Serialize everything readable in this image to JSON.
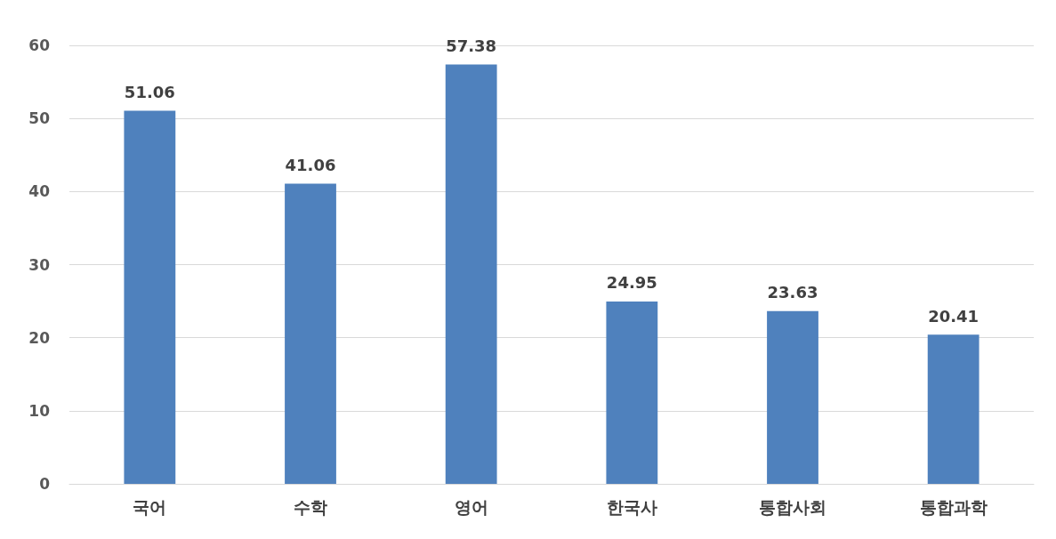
{
  "chart_data": {
    "type": "bar",
    "categories": [
      "국어",
      "수학",
      "영어",
      "한국사",
      "통합사회",
      "통합과학"
    ],
    "values": [
      51.06,
      41.06,
      57.38,
      24.95,
      23.63,
      20.41
    ],
    "color": "#4f81bd",
    "ylim": [
      0,
      60
    ],
    "yticks": [
      0,
      10,
      20,
      30,
      40,
      50,
      60
    ],
    "grid": "y",
    "data_labels": true
  }
}
